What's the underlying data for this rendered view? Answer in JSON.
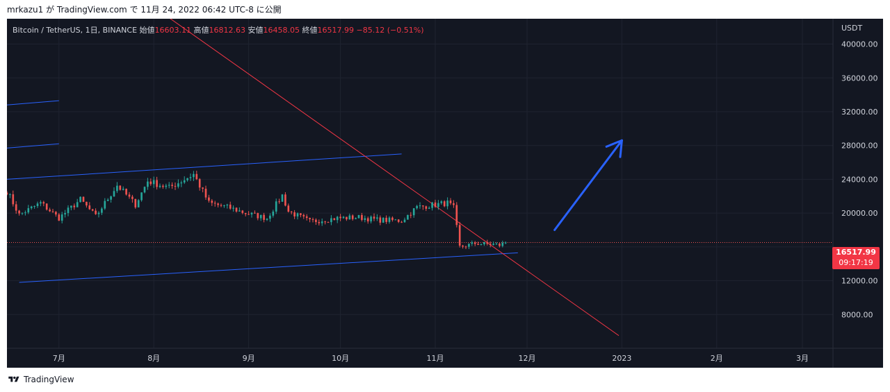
{
  "publish_line": "mrkazu1 が TradingView.com で 11月 24, 2022 06:42 UTC-8 に公開",
  "legend": {
    "symbol": "Bitcoin / TetherUS, 1日, BINANCE",
    "open_label": "始値",
    "open": "16603.11",
    "high_label": "高値",
    "high": "16812.63",
    "low_label": "安値",
    "low": "16458.05",
    "close_label": "終値",
    "close": "16517.99",
    "change": "−85.12 (−0.51%)"
  },
  "price_tag": {
    "price": "16517.99",
    "countdown": "09:17:19"
  },
  "footer": {
    "brand": "TradingView"
  },
  "colors": {
    "background": "#131722",
    "up": "#26a69a",
    "down": "#ef5350",
    "trendline": "#f23645",
    "channel": "#2962ff",
    "arrow": "#2962ff"
  },
  "chart_data": {
    "type": "candlestick",
    "symbol": "BTCUSDT",
    "interval": "1D",
    "currency_label": "USDT",
    "ylim": [
      4000,
      43000
    ],
    "y_ticks": [
      8000,
      12000,
      16000,
      20000,
      24000,
      28000,
      32000,
      36000,
      40000
    ],
    "y_tick_labels": [
      "8000.00",
      "12000.00",
      "",
      "20000.00",
      "24000.00",
      "28000.00",
      "32000.00",
      "36000.00",
      "40000.00"
    ],
    "x_range": [
      "2022-06-14",
      "2023-03-11"
    ],
    "x_ticks": [
      {
        "date": "2022-07-01",
        "label": "7月"
      },
      {
        "date": "2022-08-01",
        "label": "8月"
      },
      {
        "date": "2022-09-01",
        "label": "9月"
      },
      {
        "date": "2022-10-01",
        "label": "10月"
      },
      {
        "date": "2022-11-01",
        "label": "11月"
      },
      {
        "date": "2022-12-01",
        "label": "12月"
      },
      {
        "date": "2023-01-01",
        "label": "2023"
      },
      {
        "date": "2023-02-01",
        "label": "2月"
      },
      {
        "date": "2023-03-01",
        "label": "3月"
      }
    ],
    "price_anchors": [
      [
        "2022-06-14",
        22600
      ],
      [
        "2022-06-18",
        19800
      ],
      [
        "2022-06-25",
        21200
      ],
      [
        "2022-07-01",
        19400
      ],
      [
        "2022-07-08",
        21600
      ],
      [
        "2022-07-13",
        19600
      ],
      [
        "2022-07-20",
        23300
      ],
      [
        "2022-07-26",
        21000
      ],
      [
        "2022-07-30",
        23800
      ],
      [
        "2022-08-06",
        23000
      ],
      [
        "2022-08-14",
        24600
      ],
      [
        "2022-08-19",
        21200
      ],
      [
        "2022-08-26",
        20600
      ],
      [
        "2022-08-31",
        20000
      ],
      [
        "2022-09-07",
        19400
      ],
      [
        "2022-09-12",
        22100
      ],
      [
        "2022-09-14",
        20200
      ],
      [
        "2022-09-21",
        19000
      ],
      [
        "2022-09-30",
        19400
      ],
      [
        "2022-10-07",
        19500
      ],
      [
        "2022-10-13",
        19200
      ],
      [
        "2022-10-21",
        19100
      ],
      [
        "2022-10-26",
        20700
      ],
      [
        "2022-11-05",
        21200
      ],
      [
        "2022-11-07",
        20600
      ],
      [
        "2022-11-09",
        16000
      ],
      [
        "2022-11-14",
        16400
      ],
      [
        "2022-11-20",
        16300
      ],
      [
        "2022-11-22",
        16200
      ],
      [
        "2022-11-24",
        16518
      ]
    ],
    "drawings": {
      "red_trendline": {
        "start": [
          "2022-07-14",
          49000
        ],
        "end": [
          "2022-12-31",
          5500
        ]
      },
      "channel_upper": {
        "start": [
          "2022-06-14",
          24000
        ],
        "end": [
          "2022-10-21",
          27000
        ]
      },
      "channel_lower": {
        "start": [
          "2022-06-18",
          11800
        ],
        "end": [
          "2022-11-28",
          15300
        ]
      },
      "short_line_1": {
        "start": [
          "2022-06-14",
          32800
        ],
        "end": [
          "2022-07-01",
          33300
        ]
      },
      "short_line_2": {
        "start": [
          "2022-06-14",
          27700
        ],
        "end": [
          "2022-07-01",
          28200
        ]
      },
      "arrow": {
        "start": [
          "2022-12-10",
          18000
        ],
        "end": [
          "2023-01-01",
          28600
        ]
      }
    },
    "last_price": 16517.99,
    "grid": true,
    "legend_position": "top-left"
  }
}
